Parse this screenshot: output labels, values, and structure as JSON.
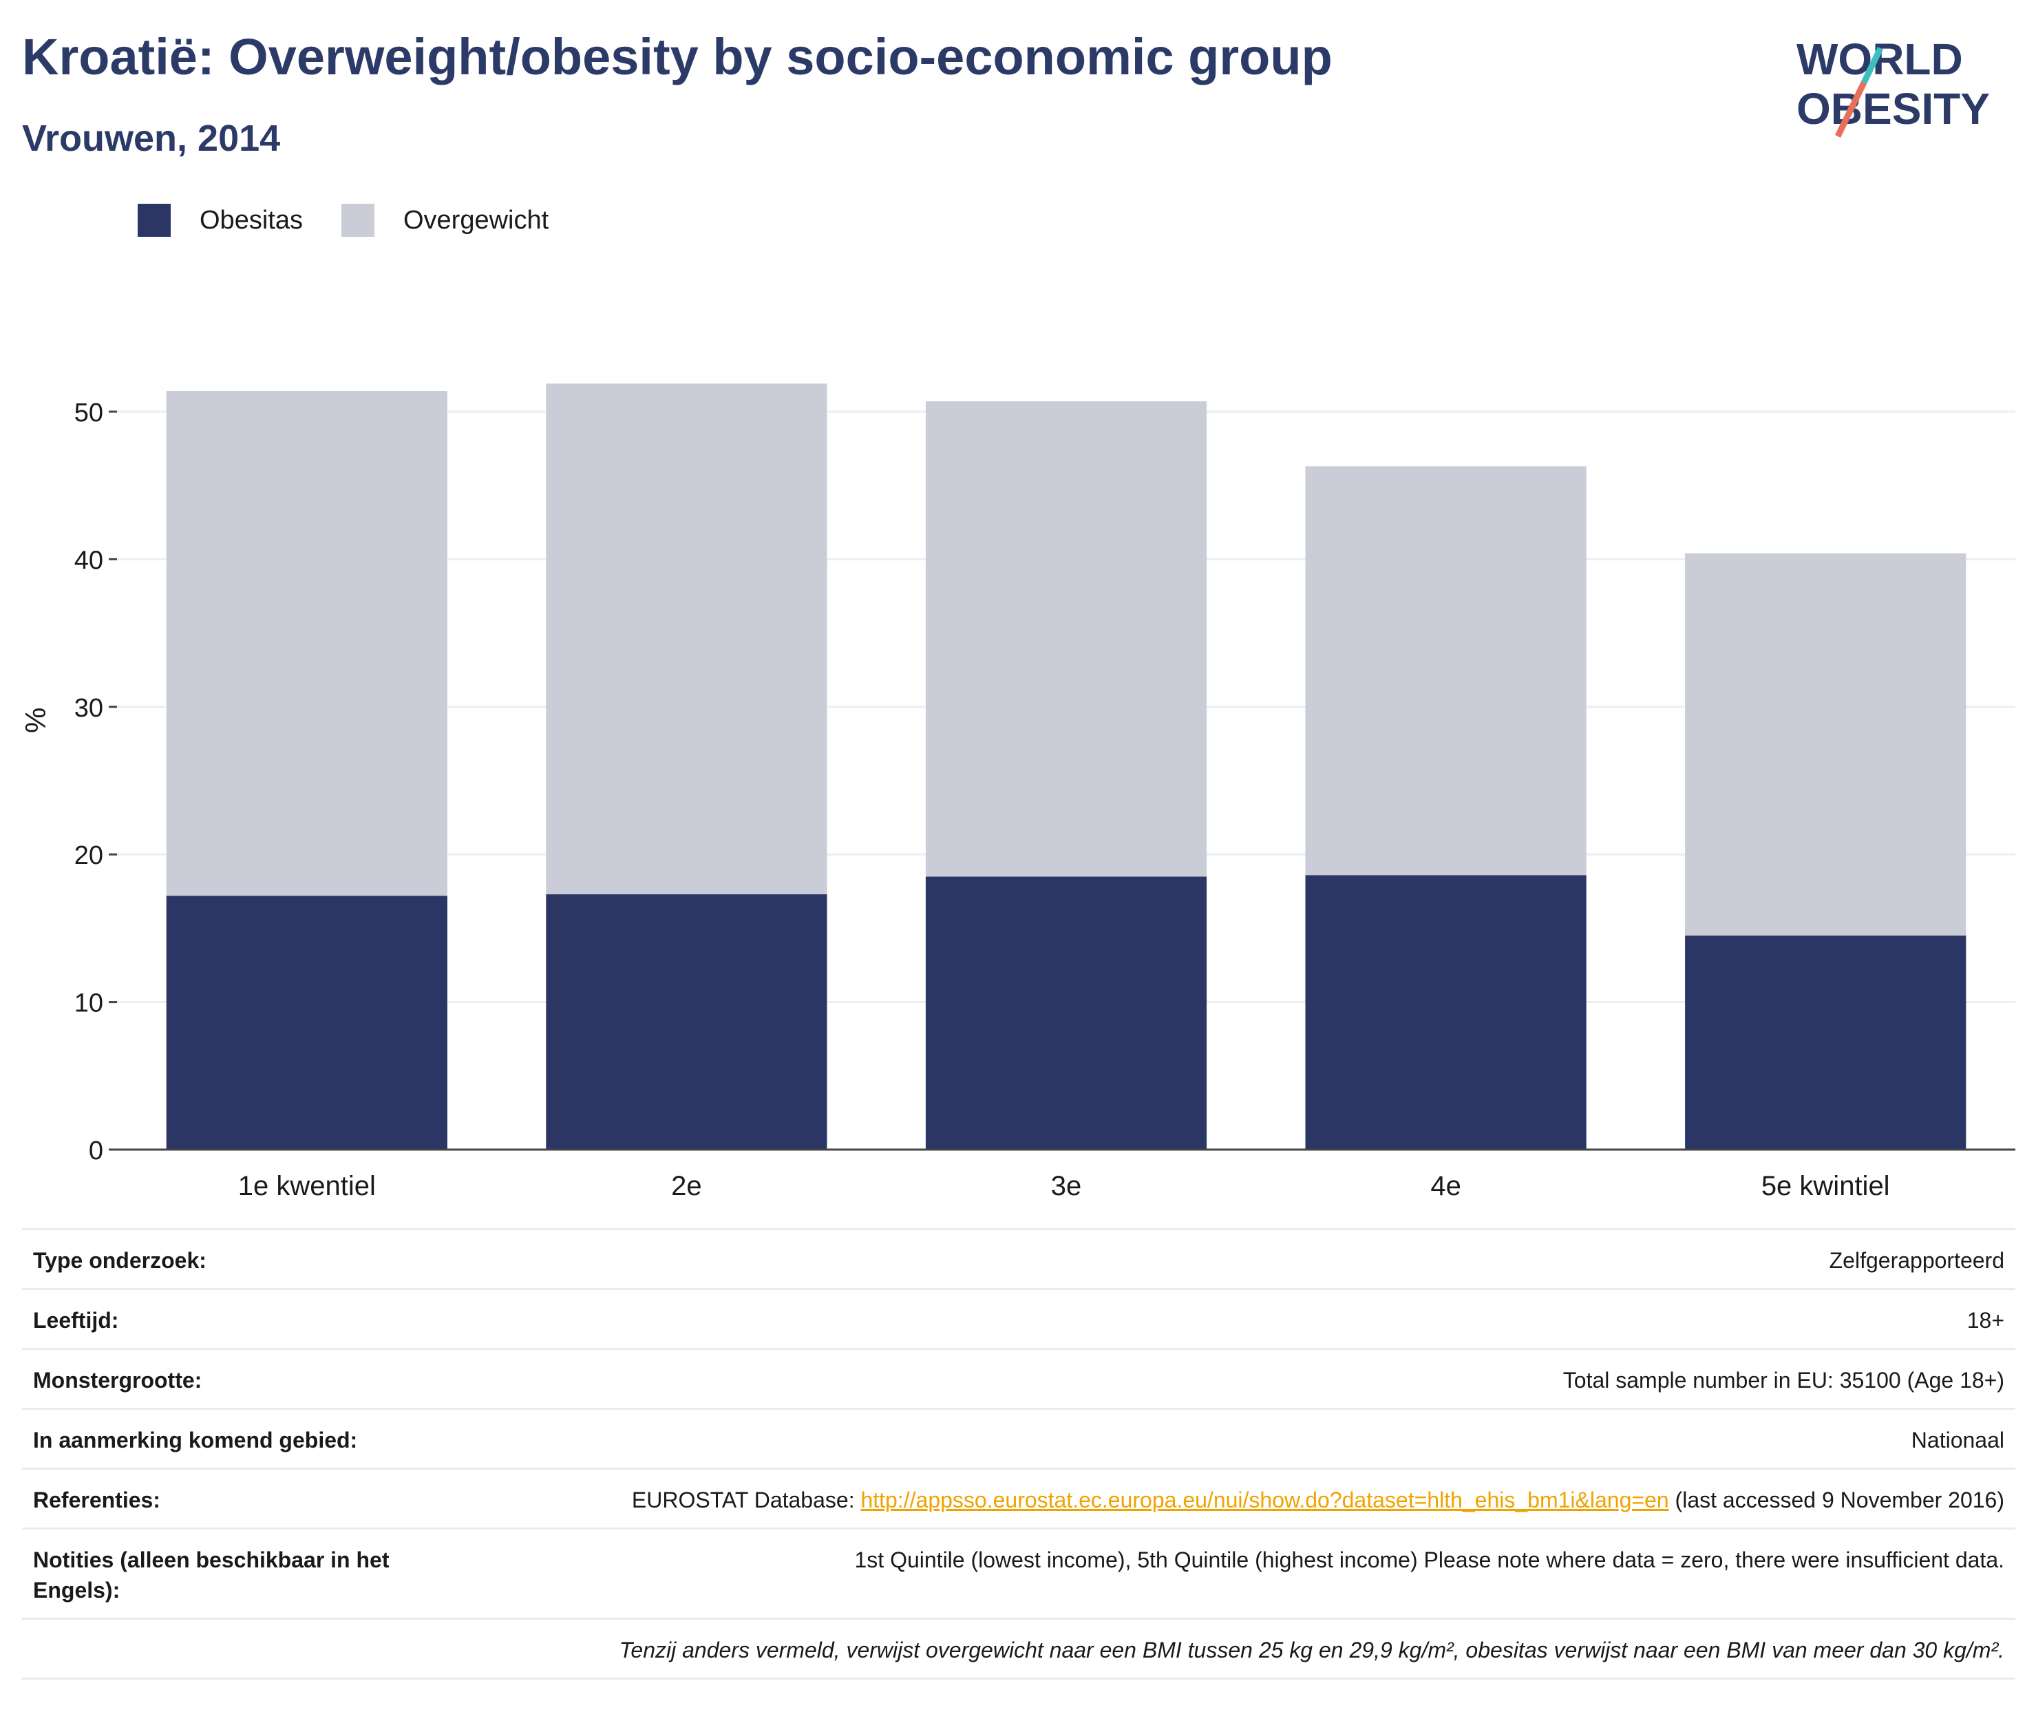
{
  "header": {
    "title": "Kroatië: Overweight/obesity by socio-economic group",
    "subtitle": "Vrouwen, 2014"
  },
  "logo": {
    "line1": "WORLD",
    "line2": "OBESITY"
  },
  "colors": {
    "obesity": "#2b3664",
    "overweight": "#cacdd8",
    "title": "#2b3a67",
    "link": "#f0a300"
  },
  "chart_data": {
    "type": "bar",
    "stacked": true,
    "categories": [
      "1e kwentiel",
      "2e",
      "3e",
      "4e",
      "5e kwintiel"
    ],
    "series": [
      {
        "name": "Obesitas",
        "values": [
          17.2,
          17.3,
          18.5,
          18.6,
          14.5
        ]
      },
      {
        "name": "Overgewicht",
        "values": [
          34.2,
          34.6,
          32.2,
          27.7,
          25.9
        ]
      }
    ],
    "ylabel": "%",
    "ylim": [
      0,
      52
    ],
    "yticks": [
      0,
      10,
      20,
      30,
      40,
      50
    ],
    "grid": true,
    "legend_position": "top-left"
  },
  "info": [
    {
      "key": "Type onderzoek:",
      "value": "Zelfgerapporteerd"
    },
    {
      "key": "Leeftijd:",
      "value": "18+"
    },
    {
      "key": "Monstergrootte:",
      "value": "Total sample number in EU: 35100 (Age 18+)"
    },
    {
      "key": "In aanmerking komend gebied:",
      "value": "Nationaal"
    },
    {
      "key": "Referenties:",
      "value_prefix": "EUROSTAT Database: ",
      "link": "http://appsso.eurostat.ec.europa.eu/nui/show.do?dataset=hlth_ehis_bm1i&lang=en",
      "value_suffix": " (last accessed 9 November 2016)"
    },
    {
      "key": "Notities (alleen beschikbaar in het Engels):",
      "value": "1st Quintile (lowest income), 5th Quintile (highest income) Please note where data = zero, there were insufficient data."
    }
  ],
  "footnote": "Tenzij anders vermeld, verwijst overgewicht naar een BMI tussen 25 kg en 29,9 kg/m², obesitas verwijst naar een BMI van meer dan 30 kg/m²."
}
